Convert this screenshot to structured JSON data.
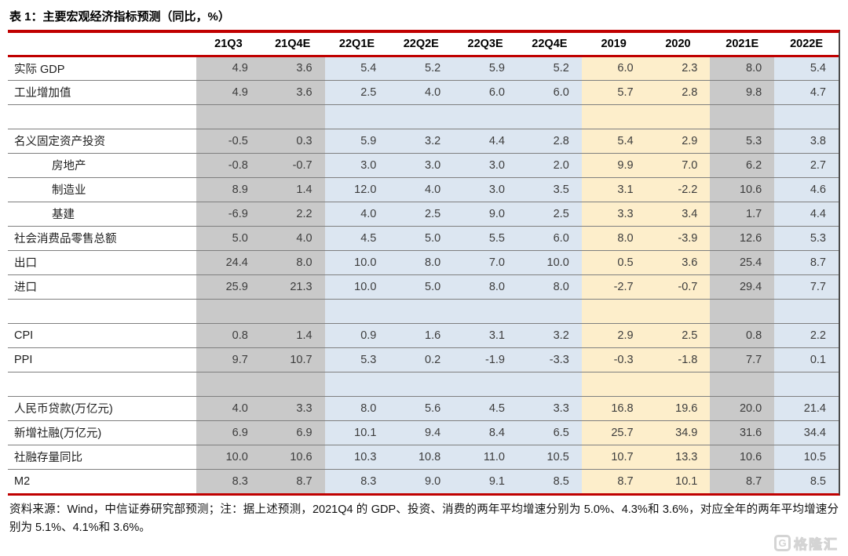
{
  "title": "表 1：主要宏观经济指标预测（同比，%）",
  "colors": {
    "accent-red": "#c00000",
    "col-gray": "#c9c9c9",
    "col-blue": "#dce6f1",
    "col-yellow": "#fdeecb",
    "row-line": "#7f7f7f",
    "right-line": "#4a4a4a"
  },
  "table": {
    "columns": [
      "21Q3",
      "21Q4E",
      "22Q1E",
      "22Q2E",
      "22Q3E",
      "22Q4E",
      "2019",
      "2020",
      "2021E",
      "2022E"
    ],
    "column_styles": [
      "gray",
      "gray",
      "blue",
      "blue",
      "blue",
      "blue",
      "yellow",
      "yellow",
      "gray",
      "blue"
    ],
    "rows": [
      {
        "label": "实际 GDP",
        "indent": false,
        "values": [
          "4.9",
          "3.6",
          "5.4",
          "5.2",
          "5.9",
          "5.2",
          "6.0",
          "2.3",
          "8.0",
          "5.4"
        ]
      },
      {
        "label": "工业增加值",
        "indent": false,
        "values": [
          "4.9",
          "3.6",
          "2.5",
          "4.0",
          "6.0",
          "6.0",
          "5.7",
          "2.8",
          "9.8",
          "4.7"
        ]
      },
      {
        "label": "",
        "indent": false,
        "values": [
          "",
          "",
          "",
          "",
          "",
          "",
          "",
          "",
          "",
          ""
        ]
      },
      {
        "label": "名义固定资产投资",
        "indent": false,
        "values": [
          "-0.5",
          "0.3",
          "5.9",
          "3.2",
          "4.4",
          "2.8",
          "5.4",
          "2.9",
          "5.3",
          "3.8"
        ]
      },
      {
        "label": "房地产",
        "indent": true,
        "values": [
          "-0.8",
          "-0.7",
          "3.0",
          "3.0",
          "3.0",
          "2.0",
          "9.9",
          "7.0",
          "6.2",
          "2.7"
        ]
      },
      {
        "label": "制造业",
        "indent": true,
        "values": [
          "8.9",
          "1.4",
          "12.0",
          "4.0",
          "3.0",
          "3.5",
          "3.1",
          "-2.2",
          "10.6",
          "4.6"
        ]
      },
      {
        "label": "基建",
        "indent": true,
        "values": [
          "-6.9",
          "2.2",
          "4.0",
          "2.5",
          "9.0",
          "2.5",
          "3.3",
          "3.4",
          "1.7",
          "4.4"
        ]
      },
      {
        "label": "社会消费品零售总额",
        "indent": false,
        "values": [
          "5.0",
          "4.0",
          "4.5",
          "5.0",
          "5.5",
          "6.0",
          "8.0",
          "-3.9",
          "12.6",
          "5.3"
        ]
      },
      {
        "label": "出口",
        "indent": false,
        "values": [
          "24.4",
          "8.0",
          "10.0",
          "8.0",
          "7.0",
          "10.0",
          "0.5",
          "3.6",
          "25.4",
          "8.7"
        ]
      },
      {
        "label": "进口",
        "indent": false,
        "values": [
          "25.9",
          "21.3",
          "10.0",
          "5.0",
          "8.0",
          "8.0",
          "-2.7",
          "-0.7",
          "29.4",
          "7.7"
        ]
      },
      {
        "label": "",
        "indent": false,
        "values": [
          "",
          "",
          "",
          "",
          "",
          "",
          "",
          "",
          "",
          ""
        ]
      },
      {
        "label": "CPI",
        "indent": false,
        "values": [
          "0.8",
          "1.4",
          "0.9",
          "1.6",
          "3.1",
          "3.2",
          "2.9",
          "2.5",
          "0.8",
          "2.2"
        ]
      },
      {
        "label": "PPI",
        "indent": false,
        "values": [
          "9.7",
          "10.7",
          "5.3",
          "0.2",
          "-1.9",
          "-3.3",
          "-0.3",
          "-1.8",
          "7.7",
          "0.1"
        ]
      },
      {
        "label": "",
        "indent": false,
        "values": [
          "",
          "",
          "",
          "",
          "",
          "",
          "",
          "",
          "",
          ""
        ]
      },
      {
        "label": "人民币贷款(万亿元)",
        "indent": false,
        "values": [
          "4.0",
          "3.3",
          "8.0",
          "5.6",
          "4.5",
          "3.3",
          "16.8",
          "19.6",
          "20.0",
          "21.4"
        ]
      },
      {
        "label": "新增社融(万亿元)",
        "indent": false,
        "values": [
          "6.9",
          "6.9",
          "10.1",
          "9.4",
          "8.4",
          "6.5",
          "25.7",
          "34.9",
          "31.6",
          "34.4"
        ]
      },
      {
        "label": "社融存量同比",
        "indent": false,
        "values": [
          "10.0",
          "10.6",
          "10.3",
          "10.8",
          "11.0",
          "10.5",
          "10.7",
          "13.3",
          "10.6",
          "10.5"
        ]
      },
      {
        "label": "M2",
        "indent": false,
        "values": [
          "8.3",
          "8.7",
          "8.3",
          "9.0",
          "9.1",
          "8.5",
          "8.7",
          "10.1",
          "8.7",
          "8.5"
        ]
      }
    ]
  },
  "footer": {
    "source_note": "资料来源：Wind，中信证券研究部预测；注：据上述预测，2021Q4 的 GDP、投资、消费的两年平均增速分别为 5.0%、4.3%和 3.6%，对应全年的两年平均增速分别为 5.1%、4.1%和 3.6%。"
  },
  "watermark": {
    "icon_letter": "G",
    "brand": "格隆汇"
  }
}
